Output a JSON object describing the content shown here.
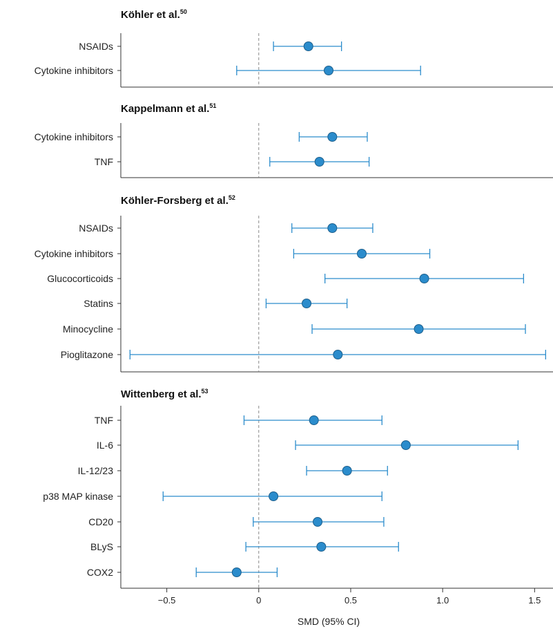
{
  "chart_data": {
    "type": "forest",
    "xlabel": "SMD (95% CI)",
    "xlim": [
      -0.75,
      1.6
    ],
    "xticks": [
      -0.5,
      0,
      0.5,
      1.0,
      1.5
    ],
    "xtick_labels": [
      "−0.5",
      "0",
      "0.5",
      "1.0",
      "1.5"
    ],
    "reference_line": 0,
    "colors": {
      "marker": "#2b8ccc",
      "marker_edge": "#1d5f8c",
      "ci_line": "#2b8ccc",
      "axis": "#333333",
      "ref_line": "#888888"
    },
    "panels": [
      {
        "title": "Köhler et al.",
        "ref": "50",
        "rows": [
          {
            "label": "NSAIDs",
            "est": 0.27,
            "lo": 0.08,
            "hi": 0.45
          },
          {
            "label": "Cytokine inhibitors",
            "est": 0.38,
            "lo": -0.12,
            "hi": 0.88
          }
        ]
      },
      {
        "title": "Kappelmann et al.",
        "ref": "51",
        "rows": [
          {
            "label": "Cytokine inhibitors",
            "est": 0.4,
            "lo": 0.22,
            "hi": 0.59
          },
          {
            "label": "TNF",
            "est": 0.33,
            "lo": 0.06,
            "hi": 0.6
          }
        ]
      },
      {
        "title": "Köhler-Forsberg et al.",
        "ref": "52",
        "rows": [
          {
            "label": "NSAIDs",
            "est": 0.4,
            "lo": 0.18,
            "hi": 0.62
          },
          {
            "label": "Cytokine inhibitors",
            "est": 0.56,
            "lo": 0.19,
            "hi": 0.93
          },
          {
            "label": "Glucocorticoids",
            "est": 0.9,
            "lo": 0.36,
            "hi": 1.44
          },
          {
            "label": "Statins",
            "est": 0.26,
            "lo": 0.04,
            "hi": 0.48
          },
          {
            "label": "Minocycline",
            "est": 0.87,
            "lo": 0.29,
            "hi": 1.45
          },
          {
            "label": "Pioglitazone",
            "est": 0.43,
            "lo": -0.7,
            "hi": 1.56
          }
        ]
      },
      {
        "title": "Wittenberg et al.",
        "ref": "53",
        "rows": [
          {
            "label": "TNF",
            "est": 0.3,
            "lo": -0.08,
            "hi": 0.67
          },
          {
            "label": "IL-6",
            "est": 0.8,
            "lo": 0.2,
            "hi": 1.41
          },
          {
            "label": "IL-12/23",
            "est": 0.48,
            "lo": 0.26,
            "hi": 0.7
          },
          {
            "label": "p38 MAP kinase",
            "est": 0.08,
            "lo": -0.52,
            "hi": 0.67
          },
          {
            "label": "CD20",
            "est": 0.32,
            "lo": -0.03,
            "hi": 0.68
          },
          {
            "label": "BLyS",
            "est": 0.34,
            "lo": -0.07,
            "hi": 0.76
          },
          {
            "label": "COX2",
            "est": -0.12,
            "lo": -0.34,
            "hi": 0.1
          }
        ]
      }
    ]
  }
}
